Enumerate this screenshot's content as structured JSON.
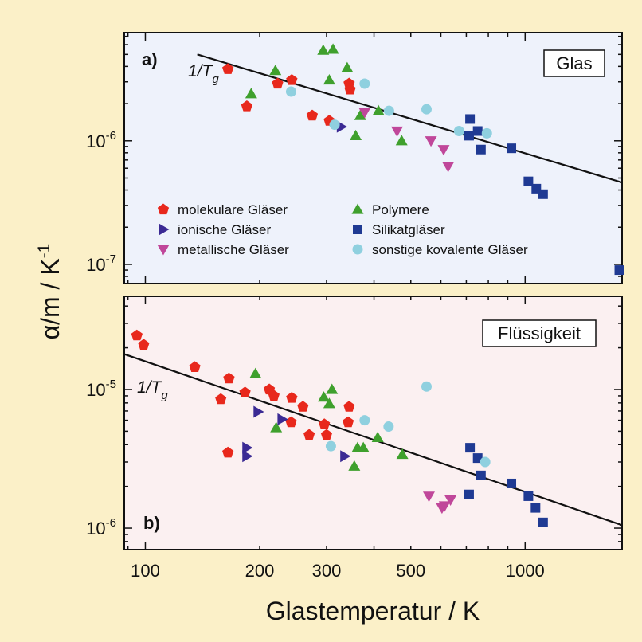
{
  "colors": {
    "background": "#fbf0c8",
    "panel_a_bg": "#eef2fb",
    "panel_b_bg": "#fbf0f1",
    "molekulare": "#e8281c",
    "ionische": "#3b2a94",
    "metallische": "#c0479a",
    "polymere": "#3fa02d",
    "silikat": "#1f3a93",
    "kovalent": "#8fd0df",
    "line": "#111111"
  },
  "chart_data": [
    {
      "type": "scatter",
      "panel": "a",
      "panel_letter": "a)",
      "box_label": "Glas",
      "fit_label_main": "1/T",
      "fit_label_sub": "g",
      "x_scale": "log",
      "y_scale": "log",
      "xlim": [
        88,
        1800
      ],
      "ylim": [
        7e-08,
        7.5e-06
      ],
      "y_ticks": [
        {
          "value": 1e-06,
          "mantissa": "10",
          "exponent": "-6"
        },
        {
          "value": 1e-07,
          "mantissa": "10",
          "exponent": "-7"
        }
      ],
      "fit_line": [
        [
          137,
          5e-06
        ],
        [
          1800,
          4.6e-07
        ]
      ],
      "legend": [
        {
          "key": "molekulare",
          "label": "molekulare Gläser",
          "marker": "pentagon"
        },
        {
          "key": "polymere",
          "label": "Polymere",
          "marker": "triangle-up"
        },
        {
          "key": "ionische",
          "label": "ionische Gläser",
          "marker": "triangle-right"
        },
        {
          "key": "silikat",
          "label": "Silikatgläser",
          "marker": "square"
        },
        {
          "key": "metallische",
          "label": "metallische Gläser",
          "marker": "triangle-down"
        },
        {
          "key": "kovalent",
          "label": "sonstige kovalente Gläser",
          "marker": "circle"
        }
      ],
      "series": [
        {
          "key": "molekulare",
          "marker": "pentagon",
          "points": [
            [
              165,
              3.8e-06
            ],
            [
              185,
              1.9e-06
            ],
            [
              223,
              2.9e-06
            ],
            [
              243,
              3.1e-06
            ],
            [
              275,
              1.6e-06
            ],
            [
              305,
              1.45e-06
            ],
            [
              344,
              2.9e-06
            ],
            [
              346,
              2.6e-06
            ]
          ]
        },
        {
          "key": "polymere",
          "marker": "triangle-up",
          "points": [
            [
              190,
              2.4e-06
            ],
            [
              220,
              3.7e-06
            ],
            [
              294,
              5.4e-06
            ],
            [
              312,
              5.5e-06
            ],
            [
              305,
              3.1e-06
            ],
            [
              340,
              3.9e-06
            ],
            [
              358,
              1.1e-06
            ],
            [
              368,
              1.6e-06
            ],
            [
              411,
              1.75e-06
            ],
            [
              473,
              1e-06
            ]
          ]
        },
        {
          "key": "ionische",
          "marker": "triangle-right",
          "points": [
            [
              328,
              1.3e-06
            ]
          ]
        },
        {
          "key": "metallische",
          "marker": "triangle-down",
          "points": [
            [
              378,
              1.7e-06
            ],
            [
              460,
              1.2e-06
            ],
            [
              565,
              1e-06
            ],
            [
              610,
              8.5e-07
            ],
            [
              627,
              6.2e-07
            ]
          ]
        },
        {
          "key": "silikat",
          "marker": "square",
          "points": [
            [
              712,
              1.1e-06
            ],
            [
              716,
              1.5e-06
            ],
            [
              750,
              1.2e-06
            ],
            [
              765,
              8.5e-07
            ],
            [
              920,
              8.7e-07
            ],
            [
              1020,
              4.7e-07
            ],
            [
              1070,
              4.1e-07
            ],
            [
              1115,
              3.7e-07
            ],
            [
              1770,
              9e-08
            ]
          ]
        },
        {
          "key": "kovalent",
          "marker": "circle",
          "points": [
            [
              242,
              2.5e-06
            ],
            [
              315,
              1.35e-06
            ],
            [
              378,
              2.9e-06
            ],
            [
              438,
              1.75e-06
            ],
            [
              550,
              1.8e-06
            ],
            [
              670,
              1.2e-06
            ],
            [
              793,
              1.15e-06
            ]
          ]
        }
      ]
    },
    {
      "type": "scatter",
      "panel": "b",
      "panel_letter": "b)",
      "box_label": "Flüssigkeit",
      "fit_label_main": "1/T",
      "fit_label_sub": "g",
      "x_scale": "log",
      "y_scale": "log",
      "xlim": [
        88,
        1800
      ],
      "ylim": [
        7e-07,
        4.7e-05
      ],
      "y_ticks": [
        {
          "value": 1e-05,
          "mantissa": "10",
          "exponent": "-5"
        },
        {
          "value": 1e-06,
          "mantissa": "10",
          "exponent": "-6"
        }
      ],
      "x_ticks": [
        {
          "value": 100,
          "label": "100"
        },
        {
          "value": 200,
          "label": "200"
        },
        {
          "value": 300,
          "label": "300"
        },
        {
          "value": 500,
          "label": "500"
        },
        {
          "value": 1000,
          "label": "1000"
        }
      ],
      "fit_line": [
        [
          88,
          1.8e-05
        ],
        [
          1800,
          1.05e-06
        ]
      ],
      "series": [
        {
          "key": "molekulare",
          "marker": "pentagon",
          "points": [
            [
              95,
              2.45e-05
            ],
            [
              99,
              2.1e-05
            ],
            [
              135,
              1.45e-05
            ],
            [
              158,
              8.5e-06
            ],
            [
              166,
              1.2e-05
            ],
            [
              183,
              9.5e-06
            ],
            [
              165,
              3.5e-06
            ],
            [
              212,
              1e-05
            ],
            [
              218,
              9e-06
            ],
            [
              243,
              8.7e-06
            ],
            [
              260,
              7.5e-06
            ],
            [
              270,
              4.7e-06
            ],
            [
              242,
              5.8e-06
            ],
            [
              296,
              5.6e-06
            ],
            [
              300,
              4.7e-06
            ],
            [
              344,
              7.5e-06
            ],
            [
              342,
              5.8e-06
            ]
          ]
        },
        {
          "key": "polymere",
          "marker": "triangle-up",
          "points": [
            [
              195,
              1.3e-05
            ],
            [
              221,
              5.3e-06
            ],
            [
              295,
              8.8e-06
            ],
            [
              310,
              1e-05
            ],
            [
              305,
              7.9e-06
            ],
            [
              355,
              2.8e-06
            ],
            [
              362,
              3.8e-06
            ],
            [
              375,
              3.8e-06
            ],
            [
              409,
              4.5e-06
            ],
            [
              475,
              3.4e-06
            ]
          ]
        },
        {
          "key": "ionische",
          "marker": "triangle-right",
          "points": [
            [
              185,
              3.8e-06
            ],
            [
              185,
              3.3e-06
            ],
            [
              198,
              6.9e-06
            ],
            [
              229,
              6.1e-06
            ],
            [
              335,
              3.3e-06
            ]
          ]
        },
        {
          "key": "metallische",
          "marker": "triangle-down",
          "points": [
            [
              558,
              1.7e-06
            ],
            [
              604,
              1.4e-06
            ],
            [
              614,
              1.45e-06
            ],
            [
              636,
              1.6e-06
            ]
          ]
        },
        {
          "key": "silikat",
          "marker": "square",
          "points": [
            [
              712,
              1.75e-06
            ],
            [
              716,
              3.8e-06
            ],
            [
              750,
              3.2e-06
            ],
            [
              765,
              2.4e-06
            ],
            [
              920,
              2.1e-06
            ],
            [
              1020,
              1.7e-06
            ],
            [
              1065,
              1.4e-06
            ],
            [
              1115,
              1.1e-06
            ]
          ]
        },
        {
          "key": "kovalent",
          "marker": "circle",
          "points": [
            [
              308,
              3.9e-06
            ],
            [
              378,
              6e-06
            ],
            [
              437,
              5.4e-06
            ],
            [
              550,
              1.05e-05
            ],
            [
              785,
              3e-06
            ]
          ]
        }
      ]
    }
  ],
  "x_axis_title": "Glastemperatur / K",
  "y_axis_title": {
    "main": "α/m / K",
    "exponent": "-1"
  }
}
